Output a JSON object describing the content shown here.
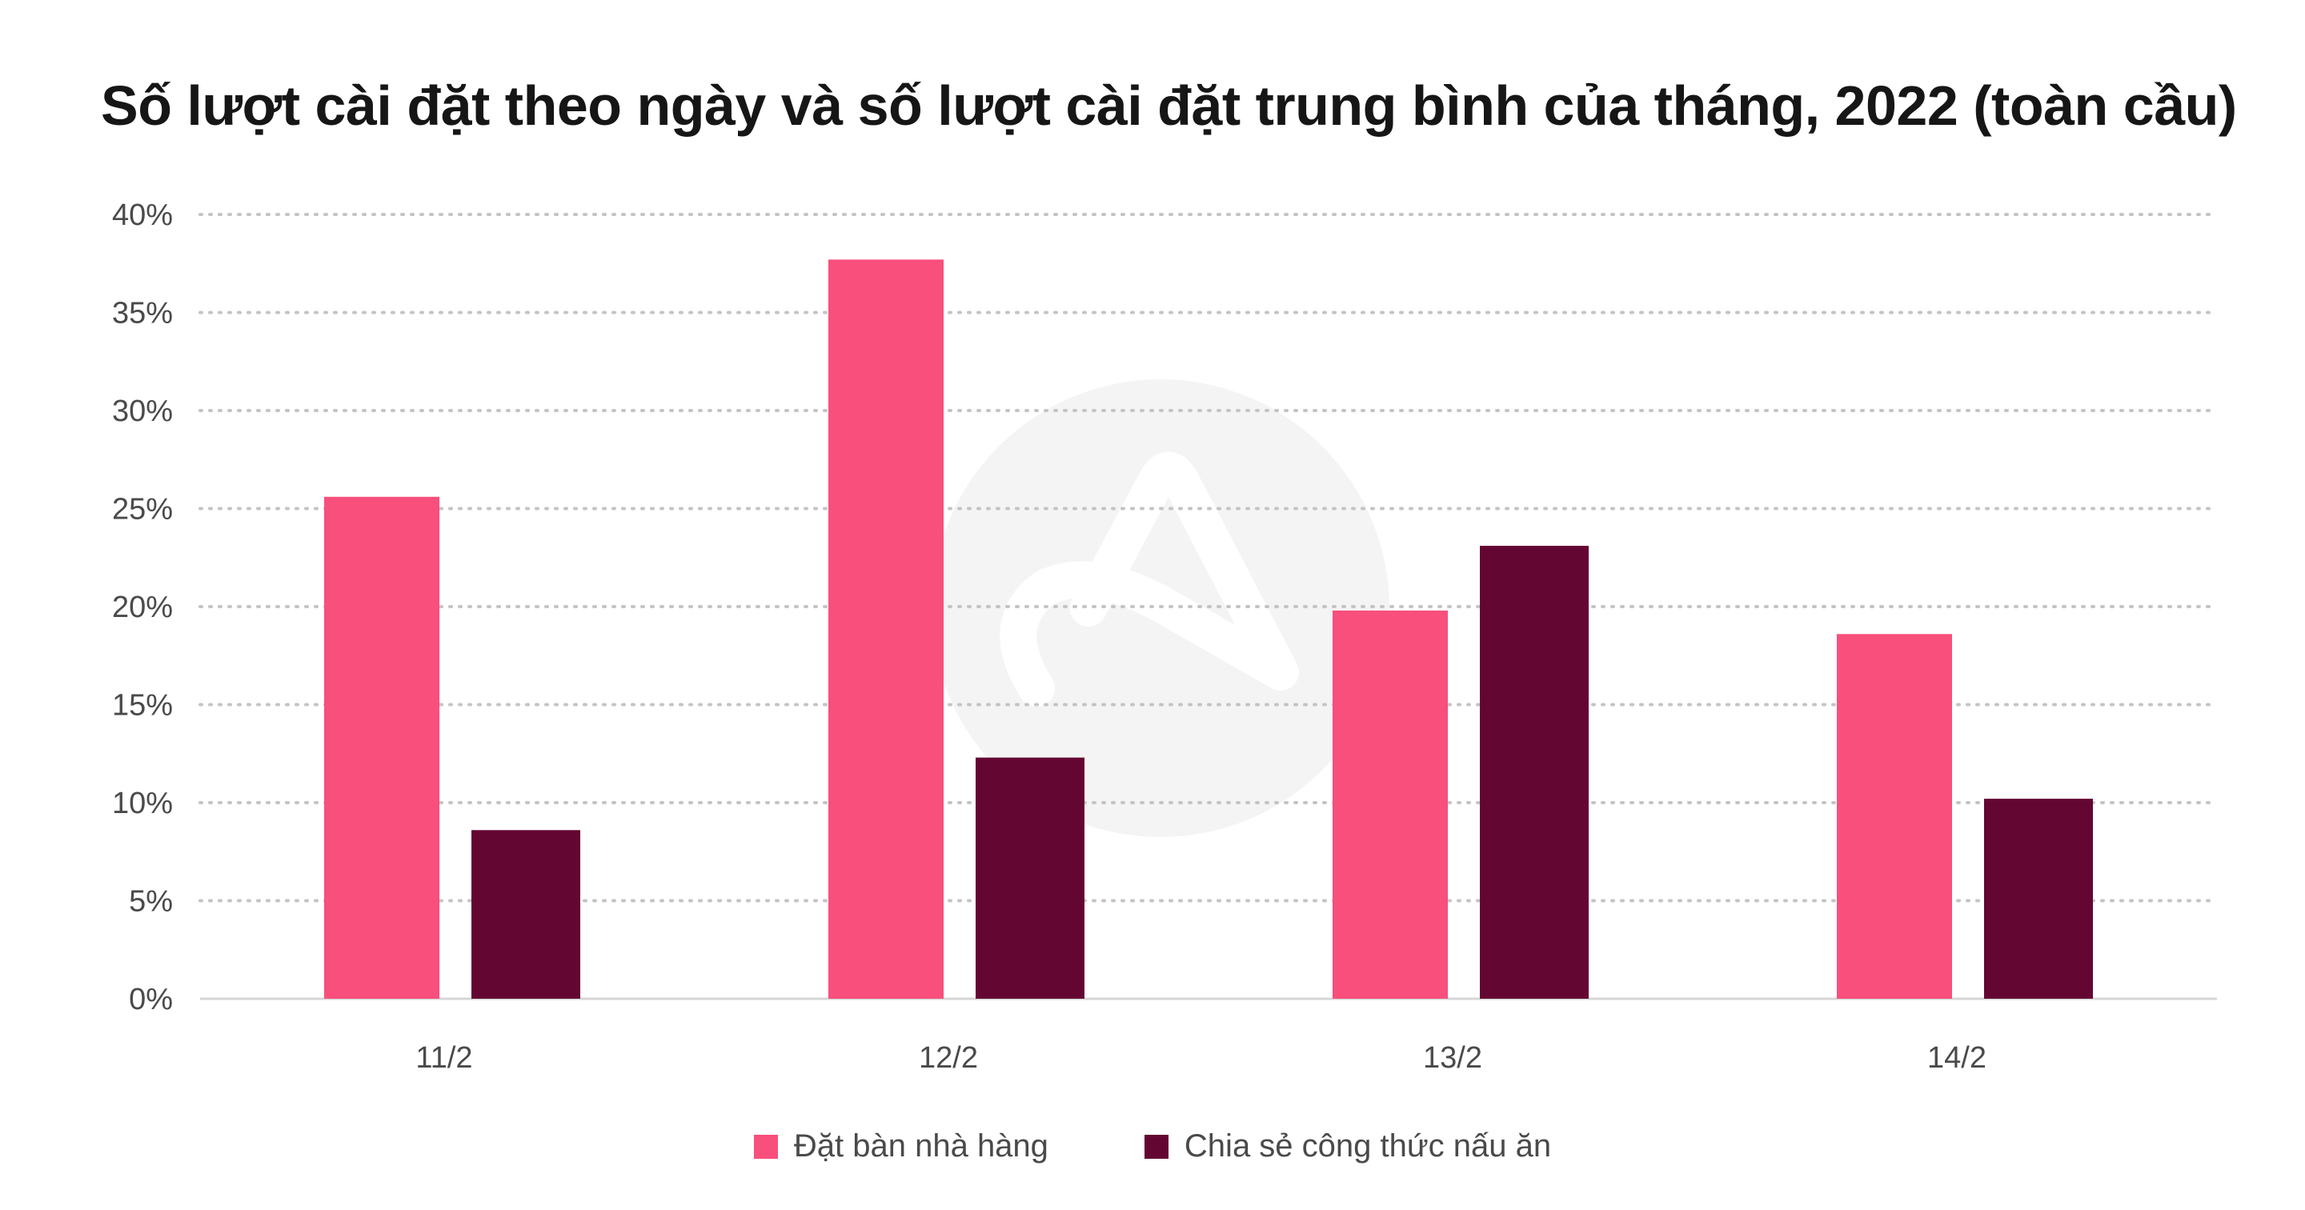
{
  "chart_data": {
    "type": "bar",
    "title": "Số lượt cài đặt theo ngày và số lượt cài đặt trung bình của tháng, 2022 (toàn cầu)",
    "categories": [
      "11/2",
      "12/2",
      "13/2",
      "14/2"
    ],
    "series": [
      {
        "name": "Đặt bàn nhà hàng",
        "values": [
          25.6,
          37.7,
          19.8,
          18.6
        ],
        "color": "#f84f7c"
      },
      {
        "name": "Chia sẻ công thức nấu ăn",
        "values": [
          8.6,
          12.3,
          23.1,
          10.2
        ],
        "color": "#640632"
      }
    ],
    "ylim": [
      0,
      40
    ],
    "yticks": [
      "0%",
      "5%",
      "10%",
      "15%",
      "20%",
      "25%",
      "30%",
      "35%",
      "40%"
    ],
    "xlabel": "",
    "ylabel": "",
    "grid": true,
    "legend_position": "bottom-center"
  },
  "watermark_icon": "logo-watermark-icon"
}
